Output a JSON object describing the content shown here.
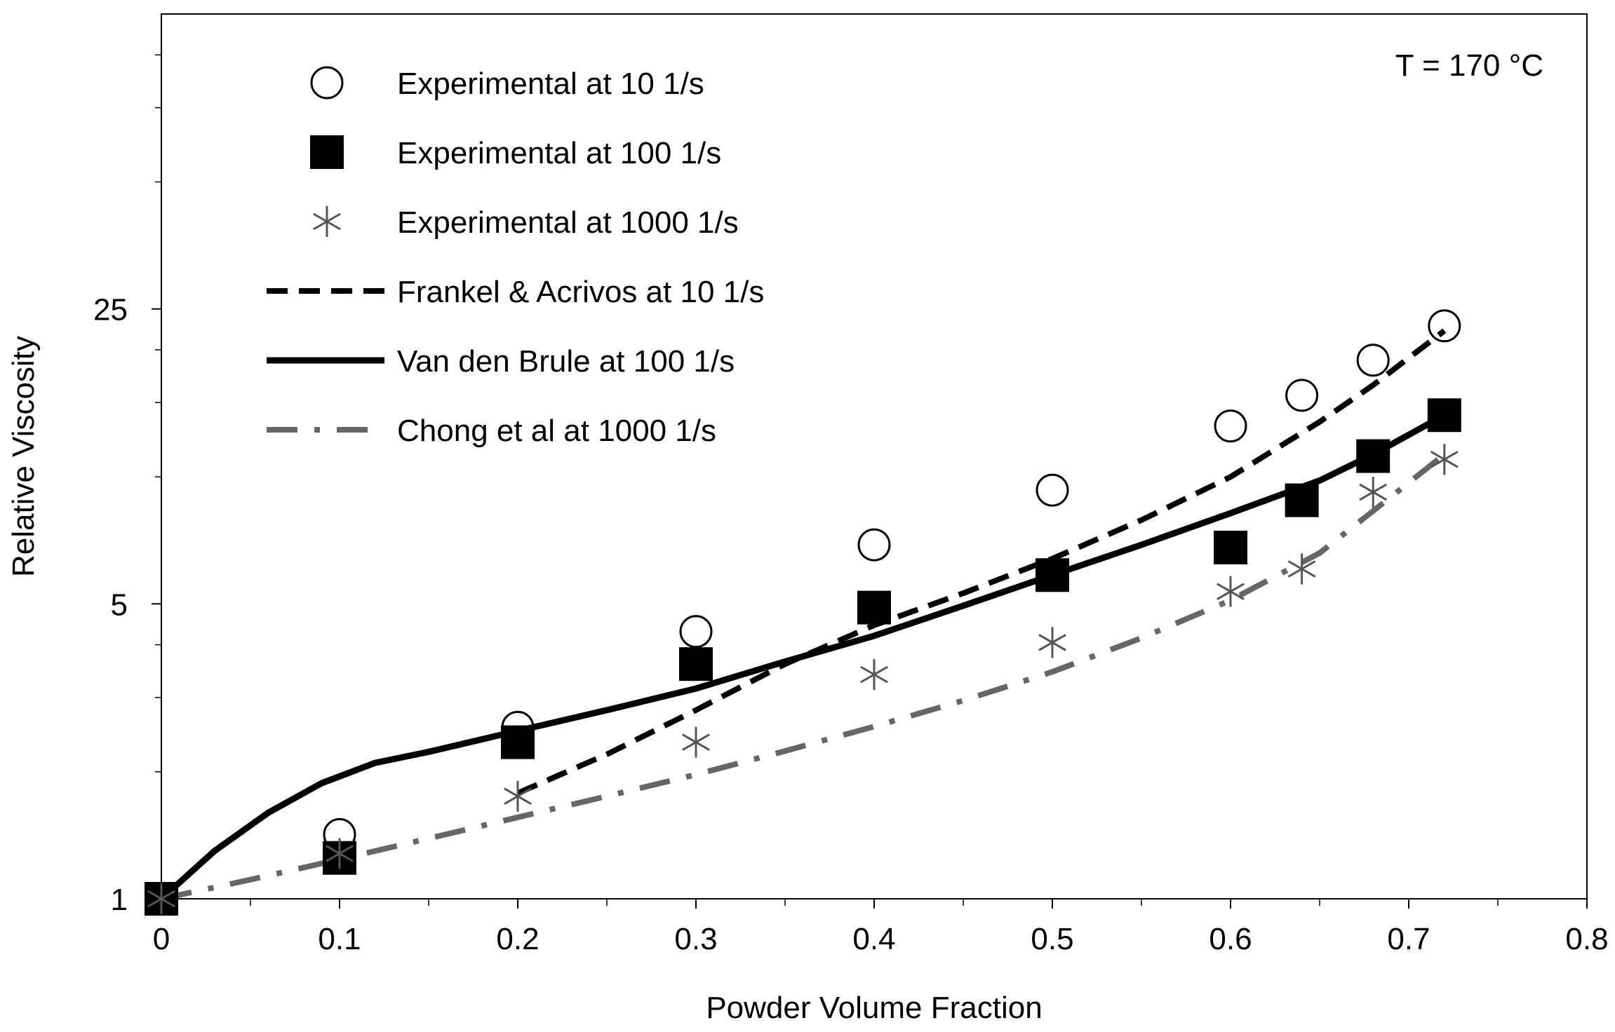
{
  "chart_data": {
    "type": "scatter",
    "title": "",
    "annotation": "T = 170 °C",
    "xlabel": "Powder  Volume  Fraction",
    "ylabel": "Relative Viscosity",
    "xlim": [
      0,
      0.8
    ],
    "ylim": [
      1,
      125
    ],
    "yscale": "log",
    "x_ticks": [
      "0",
      "0.1",
      "0.2",
      "0.3",
      "0.4",
      "0.5",
      "0.6",
      "0.7",
      "0.8"
    ],
    "x_tick_values": [
      0,
      0.1,
      0.2,
      0.3,
      0.4,
      0.5,
      0.6,
      0.7,
      0.8
    ],
    "y_ticks": [
      "1",
      "5",
      "25"
    ],
    "y_tick_values": [
      1,
      5,
      25
    ],
    "legend_position": "top-left",
    "series": [
      {
        "name": "Experimental at 10 1/s",
        "kind": "marker",
        "marker": "open-circle",
        "color": "#000000",
        "x": [
          0,
          0.1,
          0.2,
          0.3,
          0.4,
          0.5,
          0.6,
          0.64,
          0.68,
          0.72
        ],
        "y": [
          1.0,
          1.42,
          2.55,
          4.3,
          6.9,
          9.3,
          13.2,
          15.6,
          18.9,
          22.8
        ]
      },
      {
        "name": "Experimental at 100 1/s",
        "kind": "marker",
        "marker": "filled-square",
        "color": "#000000",
        "x": [
          0,
          0.1,
          0.2,
          0.3,
          0.4,
          0.5,
          0.6,
          0.64,
          0.68,
          0.72
        ],
        "y": [
          1.0,
          1.25,
          2.35,
          3.6,
          4.9,
          5.85,
          6.8,
          8.8,
          11.2,
          14.0
        ]
      },
      {
        "name": "Experimental at 1000 1/s",
        "kind": "marker",
        "marker": "asterisk",
        "color": "#555555",
        "x": [
          0,
          0.1,
          0.2,
          0.3,
          0.4,
          0.5,
          0.6,
          0.64,
          0.68,
          0.72
        ],
        "y": [
          1.0,
          1.28,
          1.75,
          2.35,
          3.4,
          4.05,
          5.35,
          6.05,
          9.2,
          11.0
        ]
      },
      {
        "name": "Frankel & Acrivos at 10 1/s",
        "kind": "line",
        "dash": "dashed",
        "color": "#000000",
        "x": [
          0.2,
          0.25,
          0.3,
          0.35,
          0.4,
          0.45,
          0.5,
          0.55,
          0.6,
          0.65,
          0.68,
          0.72
        ],
        "y": [
          1.78,
          2.2,
          2.8,
          3.6,
          4.45,
          5.3,
          6.4,
          7.9,
          10.0,
          13.5,
          16.5,
          22.2
        ]
      },
      {
        "name": "Van den Brule at 100 1/s",
        "kind": "line",
        "dash": "solid",
        "color": "#000000",
        "x": [
          0,
          0.03,
          0.06,
          0.09,
          0.12,
          0.15,
          0.2,
          0.25,
          0.3,
          0.35,
          0.4,
          0.45,
          0.5,
          0.55,
          0.6,
          0.65,
          0.68,
          0.72
        ],
        "y": [
          1.0,
          1.3,
          1.6,
          1.88,
          2.1,
          2.23,
          2.5,
          2.8,
          3.15,
          3.65,
          4.2,
          4.95,
          5.85,
          6.9,
          8.2,
          9.8,
          11.3,
          14.0
        ]
      },
      {
        "name": "Chong et al at 1000 1/s",
        "kind": "line",
        "dash": "dash-dot",
        "color": "#666666",
        "x": [
          0,
          0.05,
          0.1,
          0.15,
          0.2,
          0.25,
          0.3,
          0.35,
          0.4,
          0.45,
          0.5,
          0.55,
          0.6,
          0.65,
          0.68,
          0.72
        ],
        "y": [
          1.0,
          1.11,
          1.24,
          1.39,
          1.56,
          1.75,
          1.97,
          2.24,
          2.56,
          2.95,
          3.45,
          4.15,
          5.1,
          6.6,
          8.3,
          11.3
        ]
      }
    ]
  }
}
